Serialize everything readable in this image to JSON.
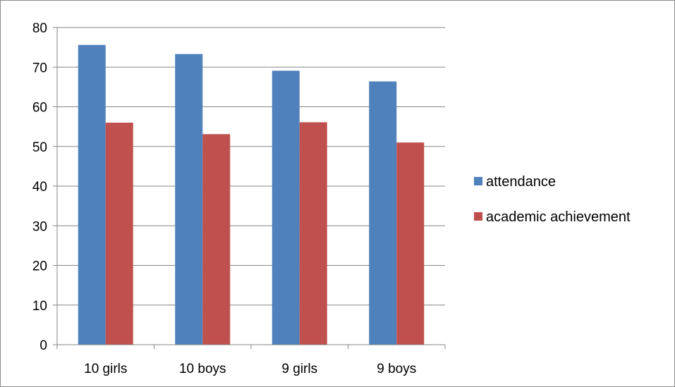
{
  "chart_data": {
    "type": "bar",
    "categories": [
      "10 girls",
      "10 boys",
      "9 girls",
      "9 boys"
    ],
    "series": [
      {
        "name": "attendance",
        "values": [
          75.6,
          73.3,
          69.1,
          66.4
        ],
        "color": "#4F81BD"
      },
      {
        "name": "academic achievement",
        "values": [
          56.0,
          53.1,
          56.1,
          51.0
        ],
        "color": "#C0504D"
      }
    ],
    "title": "",
    "xlabel": "",
    "ylabel": "",
    "ylim": [
      0,
      80
    ],
    "yticks": [
      "0",
      "10",
      "20",
      "30",
      "40",
      "50",
      "60",
      "70",
      "80"
    ],
    "grid": true,
    "legend_position": "right"
  }
}
